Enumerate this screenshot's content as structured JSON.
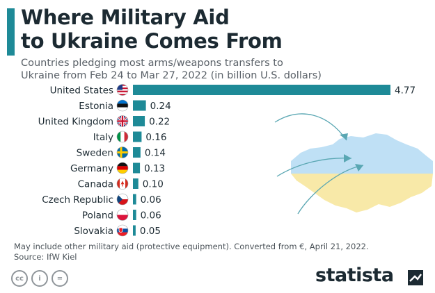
{
  "header": {
    "title_line1": "Where Military Aid",
    "title_line2": "to Ukraine Comes From",
    "subtitle_line1": "Countries pledging most arms/weapons transfers to",
    "subtitle_line2": "Ukraine from Feb 24 to Mar 27, 2022 (in billion U.S. dollars)"
  },
  "chart_data": {
    "type": "bar",
    "orientation": "horizontal",
    "categories": [
      "United States",
      "Estonia",
      "United Kingdom",
      "Italy",
      "Sweden",
      "Germany",
      "Canada",
      "Czech Republic",
      "Poland",
      "Slovakia"
    ],
    "values": [
      4.77,
      0.24,
      0.22,
      0.16,
      0.14,
      0.13,
      0.1,
      0.06,
      0.06,
      0.05
    ],
    "value_labels": [
      "4.77",
      "0.24",
      "0.22",
      "0.16",
      "0.14",
      "0.13",
      "0.10",
      "0.06",
      "0.06",
      "0.05"
    ],
    "flag_icons": [
      "us-flag-icon",
      "estonia-flag-icon",
      "uk-flag-icon",
      "italy-flag-icon",
      "sweden-flag-icon",
      "germany-flag-icon",
      "canada-flag-icon",
      "czech-flag-icon",
      "poland-flag-icon",
      "slovakia-flag-icon"
    ],
    "xlim": [
      0,
      4.77
    ],
    "bar_color": "#1e8a97",
    "grid": false,
    "legend": "none"
  },
  "colors": {
    "accent": "#1e8a97",
    "ukraine_blue": "#bfe0f5",
    "ukraine_yellow": "#f8e9a8"
  },
  "footer": {
    "note": "May include other military aid (protective equipment). Converted from €, April 21, 2022.",
    "source": "Source: IfW Kiel",
    "license_icons": [
      "cc-icon",
      "attribution-icon",
      "no-derivatives-icon"
    ],
    "license_labels": [
      "cc",
      "i",
      "="
    ],
    "brand": "statista"
  }
}
